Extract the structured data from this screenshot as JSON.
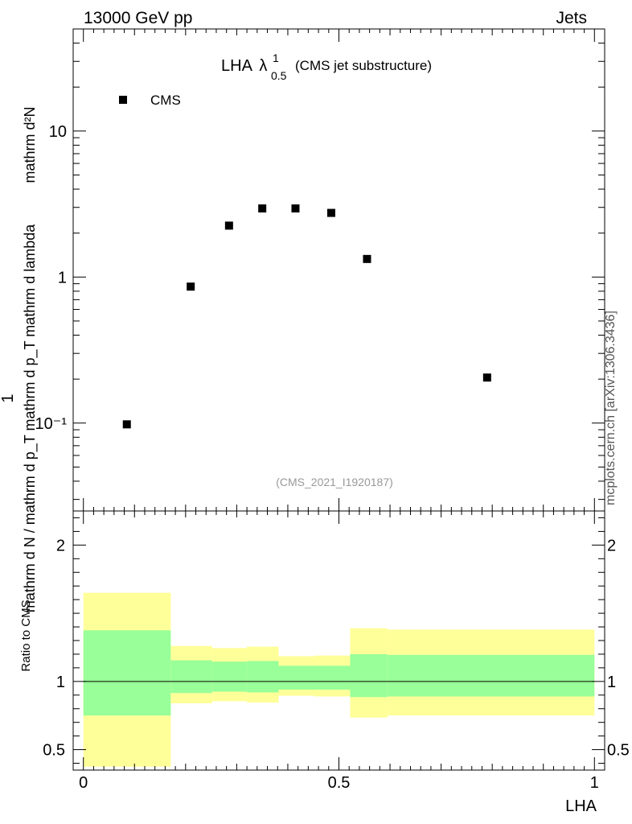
{
  "header": {
    "left": "13000 GeV pp",
    "right": "Jets"
  },
  "side_label": "mcplots.cern.ch [arXiv:1306.3436]",
  "chart_data": [
    {
      "type": "scatter",
      "panel": "main",
      "title_main": "LHA",
      "title_lambda": "λ",
      "title_sup": "1",
      "title_sub": "0.5",
      "title_suffix": "(CMS jet substructure)",
      "ylabel_left": "1",
      "ylabel_den": "mathrm d N / mathrm d p_T mathrm d p_T mathrm d lambda",
      "ylabel_num": "mathrm d²N",
      "yscale": "log",
      "ylim": [
        0.025,
        50
      ],
      "xlim": [
        -0.02,
        1.02
      ],
      "y_ticks": [
        {
          "value": 10,
          "label": "10"
        },
        {
          "value": 1,
          "label": "1"
        },
        {
          "value": 0.1,
          "label": "10⁻¹"
        }
      ],
      "watermark": "(CMS_2021_I1920187)",
      "legend": [
        {
          "name": "CMS",
          "marker": "square",
          "color": "#000000"
        }
      ],
      "series": [
        {
          "name": "CMS",
          "x": [
            0.085,
            0.21,
            0.285,
            0.35,
            0.415,
            0.485,
            0.555,
            0.79
          ],
          "y": [
            0.098,
            0.86,
            2.25,
            2.95,
            2.95,
            2.75,
            1.33,
            0.205
          ]
        }
      ]
    },
    {
      "type": "bar",
      "panel": "ratio",
      "ylabel": "Ratio to CMS",
      "xlabel": "LHA",
      "xlim": [
        -0.02,
        1.02
      ],
      "ylim": [
        0.35,
        2.25
      ],
      "y_ticks": [
        {
          "value": 2,
          "label": "2"
        },
        {
          "value": 1,
          "label": "1"
        },
        {
          "value": 0.5,
          "label": "0.5"
        }
      ],
      "x_ticks": [
        {
          "value": 0,
          "label": "0"
        },
        {
          "value": 0.5,
          "label": "0.5"
        },
        {
          "value": 1,
          "label": "1"
        }
      ],
      "reference_line": 1,
      "colors": {
        "outer": "#ffff99",
        "inner": "#99ff99"
      },
      "bands": [
        {
          "x0": 0.0,
          "x1": 0.171,
          "outer": [
            0.375,
            1.65
          ],
          "inner": [
            0.75,
            1.375
          ]
        },
        {
          "x0": 0.171,
          "x1": 0.252,
          "outer": [
            0.84,
            1.26
          ],
          "inner": [
            0.915,
            1.155
          ]
        },
        {
          "x0": 0.252,
          "x1": 0.32,
          "outer": [
            0.855,
            1.245
          ],
          "inner": [
            0.925,
            1.145
          ]
        },
        {
          "x0": 0.32,
          "x1": 0.382,
          "outer": [
            0.845,
            1.255
          ],
          "inner": [
            0.92,
            1.15
          ]
        },
        {
          "x0": 0.382,
          "x1": 0.452,
          "outer": [
            0.895,
            1.185
          ],
          "inner": [
            0.94,
            1.115
          ]
        },
        {
          "x0": 0.452,
          "x1": 0.522,
          "outer": [
            0.89,
            1.19
          ],
          "inner": [
            0.94,
            1.115
          ]
        },
        {
          "x0": 0.522,
          "x1": 0.595,
          "outer": [
            0.735,
            1.39
          ],
          "inner": [
            0.885,
            1.2
          ]
        },
        {
          "x0": 0.595,
          "x1": 1.0,
          "outer": [
            0.75,
            1.38
          ],
          "inner": [
            0.89,
            1.195
          ]
        }
      ]
    }
  ]
}
